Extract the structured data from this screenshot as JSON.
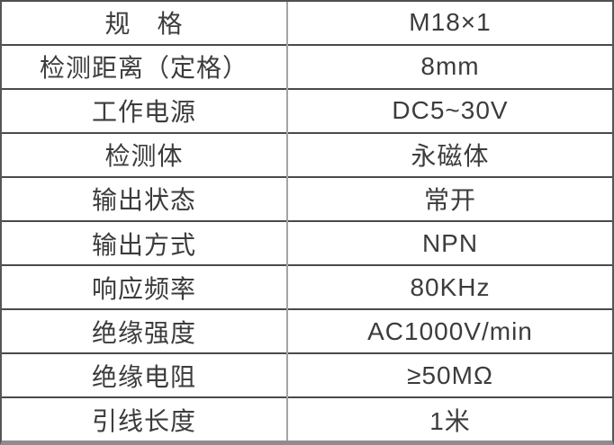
{
  "table": {
    "title": "product-specification-table",
    "columns": [
      "parameter",
      "value"
    ],
    "rows": [
      {
        "label": "规　格",
        "value": "M18×1"
      },
      {
        "label": "检测距离（定格）",
        "value": "8mm"
      },
      {
        "label": "工作电源",
        "value": "DC5~30V"
      },
      {
        "label": "检测体",
        "value": "永磁体"
      },
      {
        "label": "输出状态",
        "value": "常开"
      },
      {
        "label": "输出方式",
        "value": "NPN"
      },
      {
        "label": "响应频率",
        "value": "80KHz"
      },
      {
        "label": "绝缘强度",
        "value": "AC1000V/min"
      },
      {
        "label": "绝缘电阻",
        "value": "≥50MΩ"
      },
      {
        "label": "引线长度",
        "value": "1米"
      }
    ]
  },
  "colors": {
    "background": "#ffffff",
    "text": "#3c3c3c",
    "horizontal_line": "#4a4a4a",
    "vertical_divider": "#a4a4a4",
    "bottom_border": "#8d8d8d"
  }
}
